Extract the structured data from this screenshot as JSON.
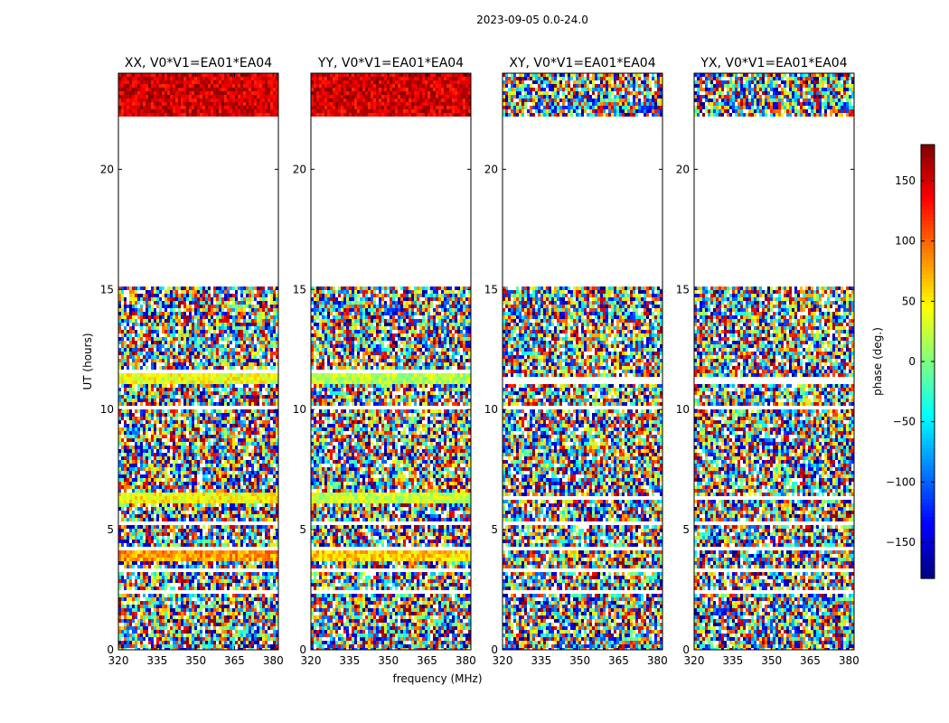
{
  "figure": {
    "title": "2023-09-05 0.0-24.0"
  },
  "chart_data": {
    "type": "heatmap",
    "title": "2023-09-05 0.0-24.0",
    "xlabel": "frequency (MHz)",
    "ylabel": "UT (hours)",
    "xlim": [
      320,
      382
    ],
    "ylim": [
      0,
      24
    ],
    "xticks": [
      "320",
      "335",
      "350",
      "365",
      "380"
    ],
    "xtick_values": [
      320,
      335,
      350,
      365,
      380
    ],
    "yticks": [
      "0",
      "5",
      "10",
      "15",
      "20"
    ],
    "ytick_values": [
      0,
      5,
      10,
      15,
      20
    ],
    "panels": [
      {
        "title": "XX, V0*V1=EA01*EA04",
        "coherent_bands": [
          {
            "from": 22.2,
            "to": 24.0,
            "phase_deg": 150
          },
          {
            "from": 11.1,
            "to": 11.5,
            "phase_deg": 40
          },
          {
            "from": 6.1,
            "to": 6.5,
            "phase_deg": 45
          },
          {
            "from": 3.7,
            "to": 4.1,
            "phase_deg": 80
          }
        ],
        "gaps": [
          {
            "from": 15.05,
            "to": 22.2
          },
          {
            "from": 11.55,
            "to": 11.7
          },
          {
            "from": 10.0,
            "to": 10.1
          },
          {
            "from": 8.9,
            "to": 9.0
          },
          {
            "from": 7.4,
            "to": 7.5
          },
          {
            "from": 6.5,
            "to": 6.6
          },
          {
            "from": 5.2,
            "to": 5.4
          },
          {
            "from": 4.1,
            "to": 4.3
          },
          {
            "from": 3.3,
            "to": 3.4
          },
          {
            "from": 2.3,
            "to": 2.45
          },
          {
            "from": 0.8,
            "to": 0.9
          }
        ]
      },
      {
        "title": "YY, V0*V1=EA01*EA04",
        "coherent_bands": [
          {
            "from": 22.2,
            "to": 24.0,
            "phase_deg": 150
          },
          {
            "from": 11.1,
            "to": 11.5,
            "phase_deg": 20
          },
          {
            "from": 6.1,
            "to": 6.5,
            "phase_deg": 25
          },
          {
            "from": 3.7,
            "to": 4.1,
            "phase_deg": 60
          }
        ],
        "gaps": [
          {
            "from": 15.05,
            "to": 22.2
          },
          {
            "from": 11.55,
            "to": 11.7
          },
          {
            "from": 10.0,
            "to": 10.1
          },
          {
            "from": 8.9,
            "to": 9.0
          },
          {
            "from": 7.4,
            "to": 7.5
          },
          {
            "from": 6.5,
            "to": 6.6
          },
          {
            "from": 5.2,
            "to": 5.4
          },
          {
            "from": 4.1,
            "to": 4.3
          },
          {
            "from": 3.3,
            "to": 3.4
          },
          {
            "from": 2.3,
            "to": 2.45
          },
          {
            "from": 0.8,
            "to": 0.9
          }
        ]
      },
      {
        "title": "XY, V0*V1=EA01*EA04",
        "coherent_bands": [],
        "gaps": [
          {
            "from": 15.05,
            "to": 22.2
          },
          {
            "from": 11.1,
            "to": 11.3
          },
          {
            "from": 10.0,
            "to": 10.1
          },
          {
            "from": 8.9,
            "to": 9.0
          },
          {
            "from": 7.4,
            "to": 7.5
          },
          {
            "from": 6.2,
            "to": 6.4
          },
          {
            "from": 5.2,
            "to": 5.4
          },
          {
            "from": 4.1,
            "to": 4.3
          },
          {
            "from": 3.3,
            "to": 3.4
          },
          {
            "from": 2.3,
            "to": 2.45
          },
          {
            "from": 0.8,
            "to": 0.9
          }
        ]
      },
      {
        "title": "YX, V0*V1=EA01*EA04",
        "coherent_bands": [],
        "gaps": [
          {
            "from": 15.05,
            "to": 22.2
          },
          {
            "from": 11.1,
            "to": 11.3
          },
          {
            "from": 10.0,
            "to": 10.1
          },
          {
            "from": 8.9,
            "to": 9.0
          },
          {
            "from": 7.4,
            "to": 7.5
          },
          {
            "from": 6.2,
            "to": 6.4
          },
          {
            "from": 5.2,
            "to": 5.4
          },
          {
            "from": 4.1,
            "to": 4.3
          },
          {
            "from": 3.3,
            "to": 3.4
          },
          {
            "from": 2.3,
            "to": 2.45
          },
          {
            "from": 0.8,
            "to": 0.9
          }
        ]
      }
    ],
    "colorbar": {
      "label": "phase (deg.)",
      "range": [
        -180,
        180
      ],
      "colormap": "jet",
      "ticks": [
        "150",
        "100",
        "50",
        "0",
        "−50",
        "−100",
        "−150"
      ],
      "tick_values": [
        150,
        100,
        50,
        0,
        -50,
        -100,
        -150
      ]
    }
  }
}
